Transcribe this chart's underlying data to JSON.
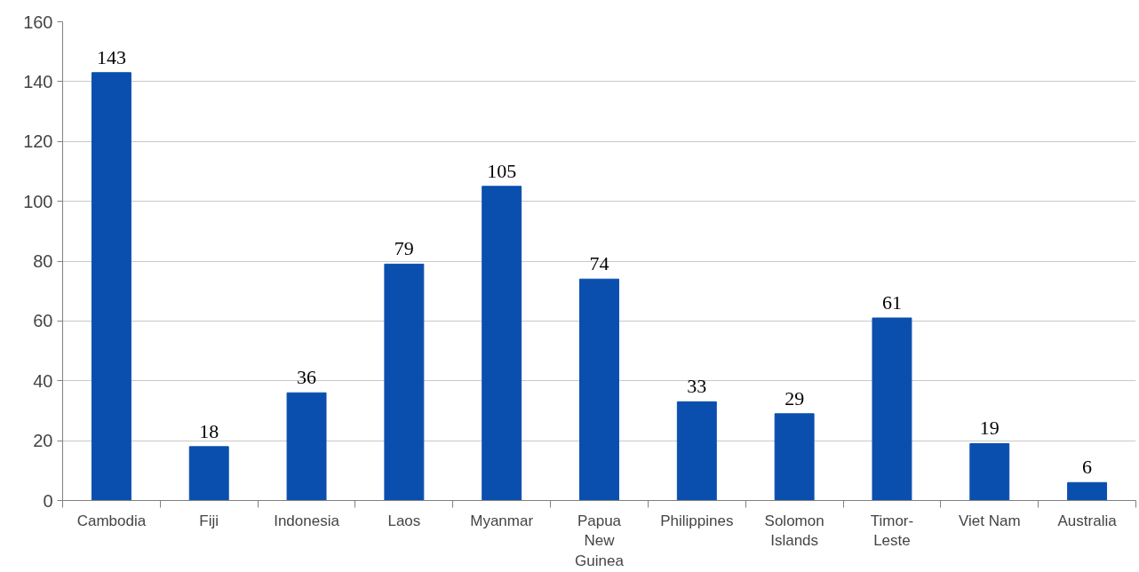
{
  "chart_data": {
    "type": "bar",
    "categories": [
      "Cambodia",
      "Fiji",
      "Indonesia",
      "Laos",
      "Myanmar",
      "Papua\nNew\nGuinea",
      "Philippines",
      "Solomon\nIslands",
      "Timor-\nLeste",
      "Viet Nam",
      "Australia"
    ],
    "values": [
      143,
      18,
      36,
      79,
      105,
      74,
      33,
      29,
      61,
      19,
      6
    ],
    "color": "#0b4fae",
    "ylim": [
      0,
      160
    ],
    "yticks": [
      0,
      20,
      40,
      60,
      80,
      100,
      120,
      140,
      160
    ],
    "grid": "y",
    "data_labels": true
  }
}
